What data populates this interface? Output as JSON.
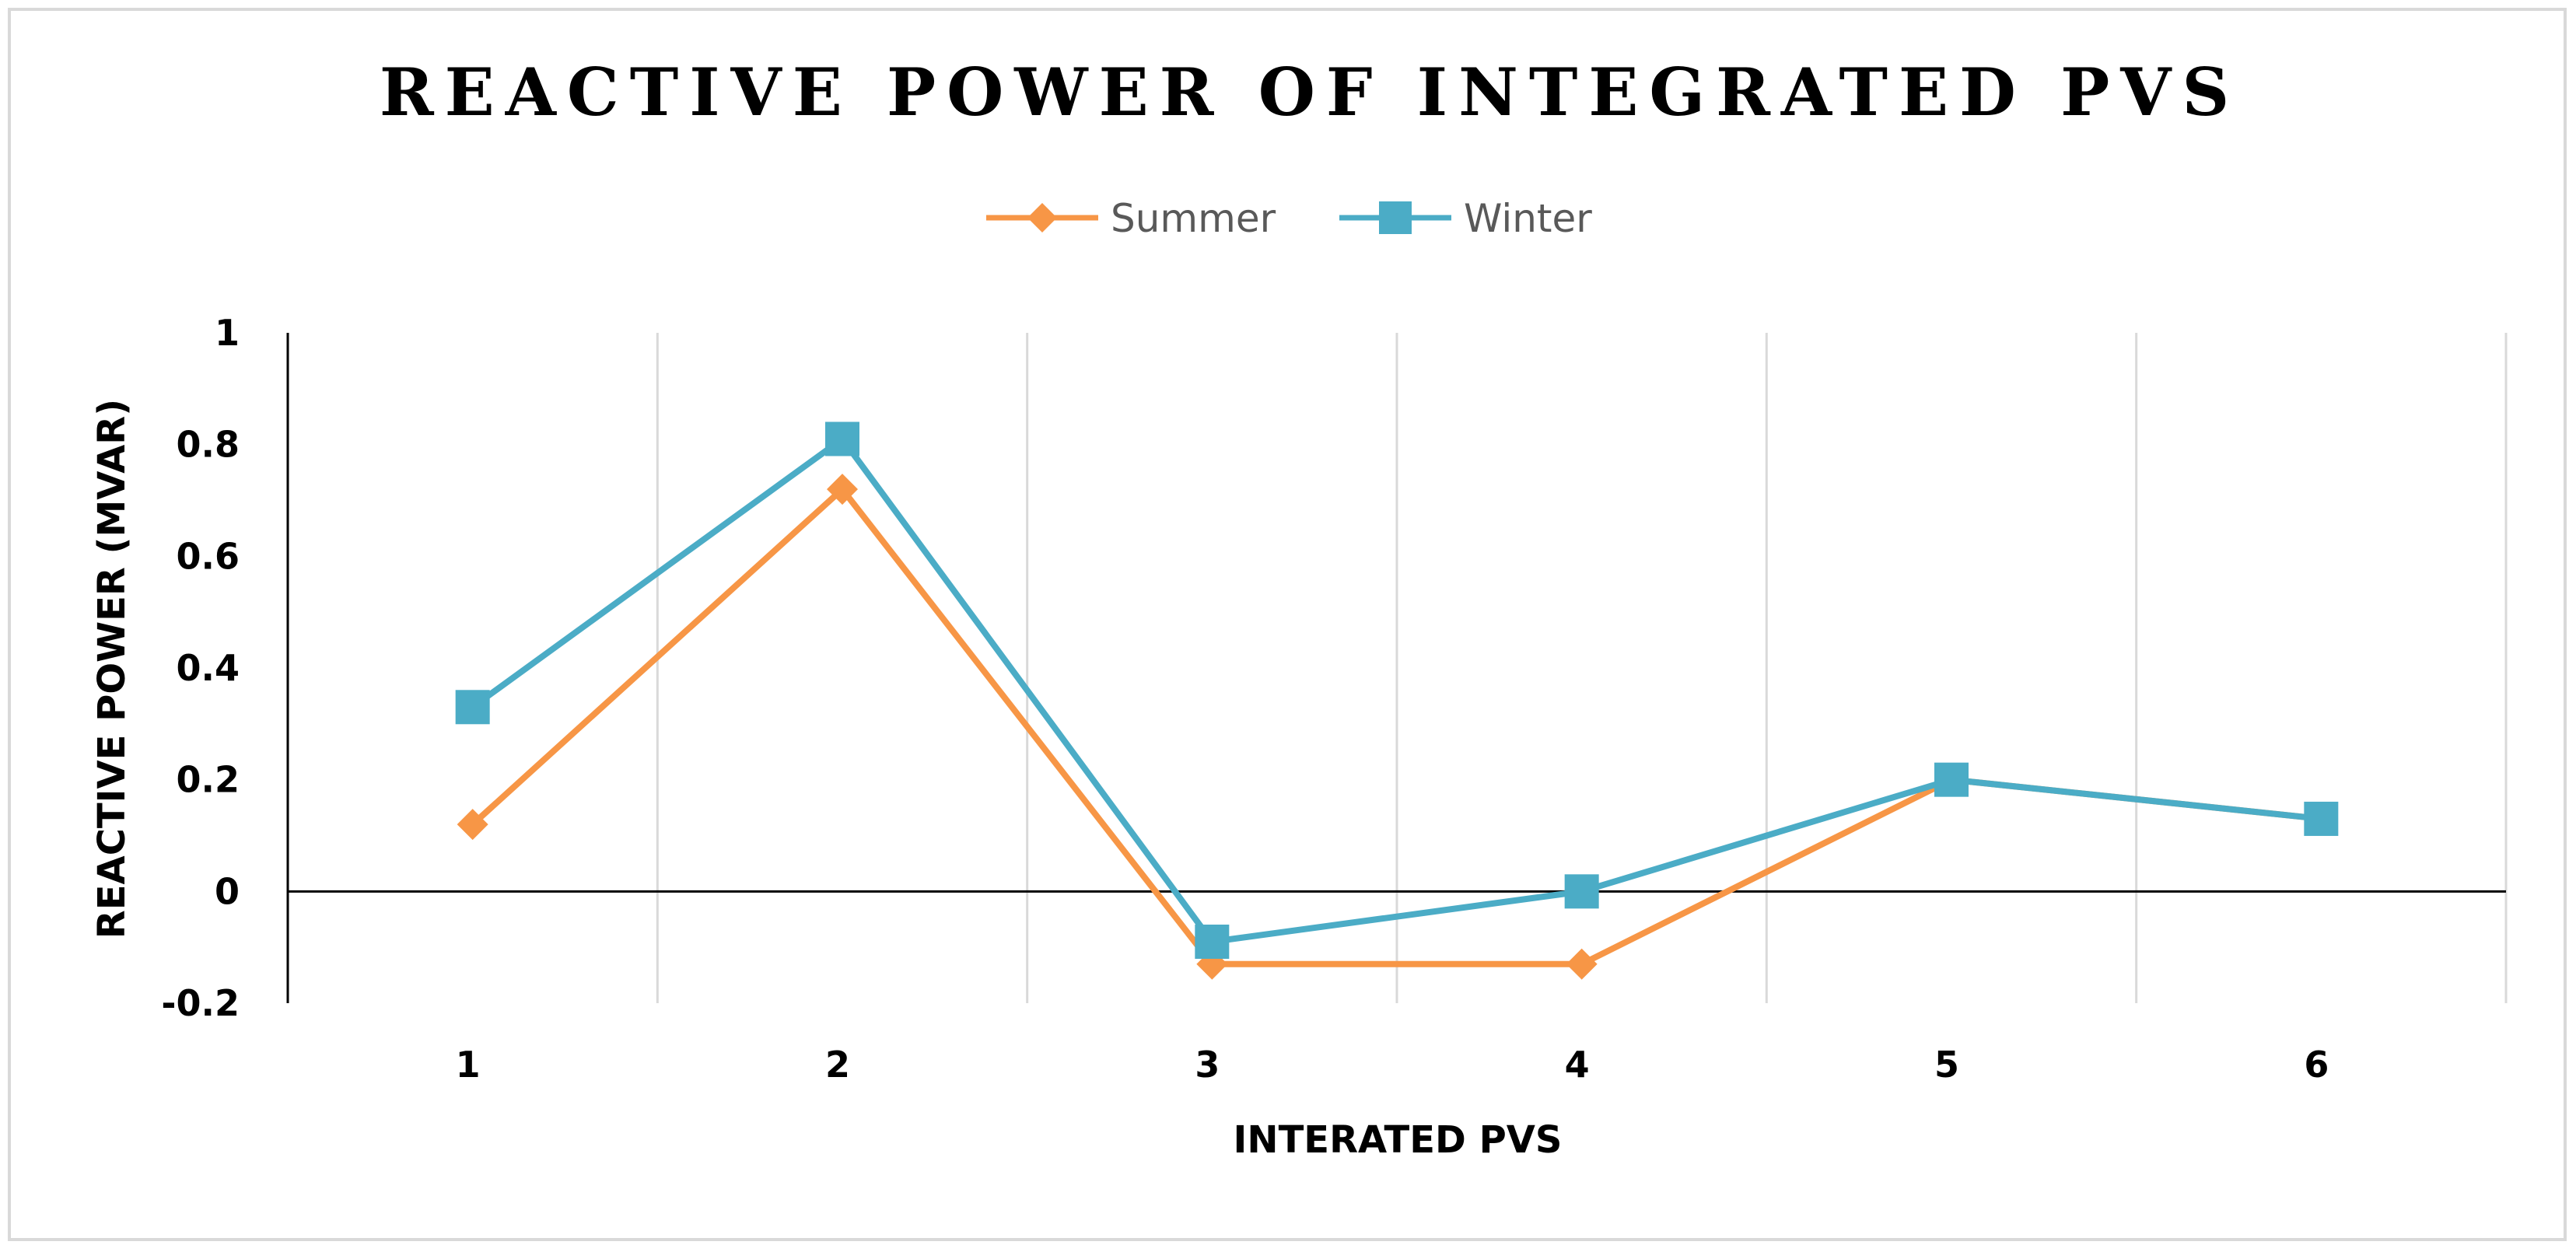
{
  "chart_data": {
    "type": "line",
    "title": "REACTIVE POWER OF INTEGRATED PVS",
    "xlabel": "INTERATED PVS",
    "ylabel": "REACTIVE POWER (MVAR)",
    "categories": [
      "1",
      "2",
      "3",
      "4",
      "5",
      "6"
    ],
    "ylim": [
      -0.2,
      1
    ],
    "yticks": [
      -0.2,
      0,
      0.2,
      0.4,
      0.6,
      0.8,
      1
    ],
    "ytick_labels": [
      "-0.2",
      "0",
      "0.2",
      "0.4",
      "0.6",
      "0.8",
      "1"
    ],
    "grid": "vertical",
    "legend_position": "top-center",
    "series": [
      {
        "name": "Summer",
        "color": "#F79646",
        "marker": "diamond",
        "values": [
          0.12,
          0.72,
          -0.13,
          -0.13,
          0.2,
          0.13
        ]
      },
      {
        "name": "Winter",
        "color": "#4BACC6",
        "marker": "square",
        "values": [
          0.33,
          0.81,
          -0.09,
          0.0,
          0.2,
          0.13
        ]
      }
    ]
  }
}
